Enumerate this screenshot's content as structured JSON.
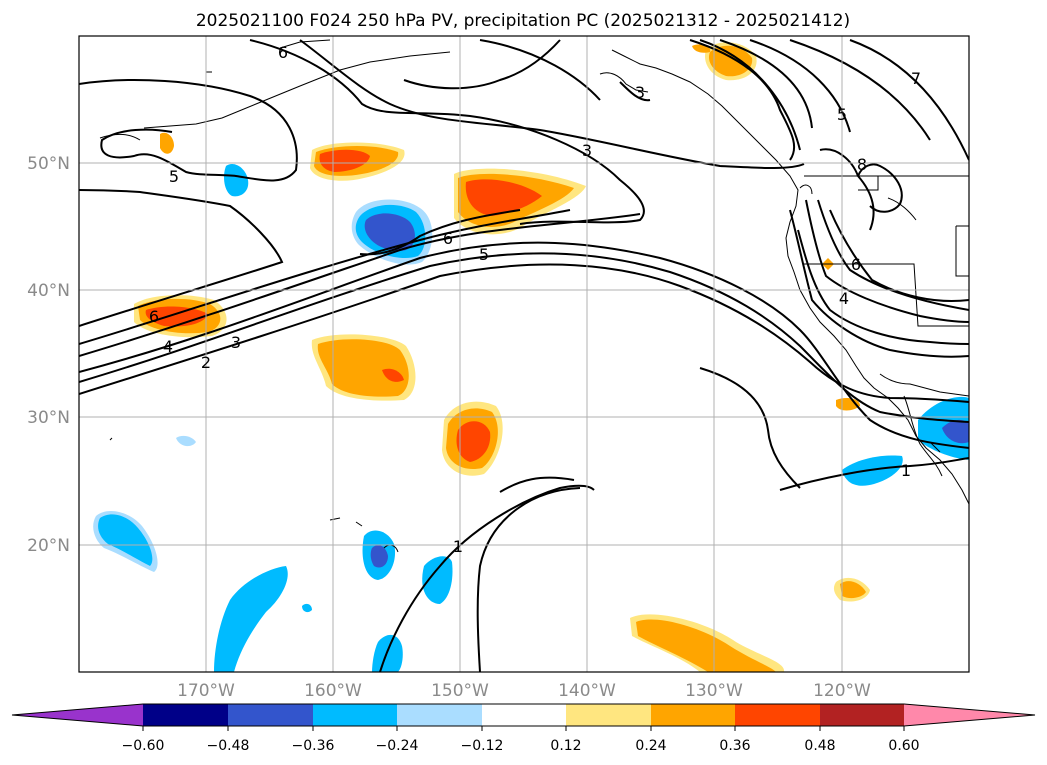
{
  "title": "2025021100 F024 250 hPa PV, precipitation PC (2025021312 - 2025021412)",
  "map": {
    "lon_ticks": [
      "170°W",
      "160°W",
      "150°W",
      "140°W",
      "130°W",
      "120°W"
    ],
    "lat_ticks": [
      "50°N",
      "40°N",
      "30°N",
      "20°N"
    ],
    "grid": true,
    "pv_contour_labels": [
      "6",
      "5",
      "6",
      "3",
      "6",
      "5",
      "4",
      "3",
      "2",
      "1",
      "7",
      "5",
      "8",
      "6",
      "4",
      "1",
      "3"
    ]
  },
  "colorbar": {
    "ticks": [
      "−0.60",
      "−0.48",
      "−0.36",
      "−0.24",
      "−0.12",
      "0.12",
      "0.24",
      "0.36",
      "0.48",
      "0.60"
    ],
    "colors": [
      "#9933cc",
      "#000088",
      "#3355cc",
      "#00bbff",
      "#aaddff",
      "#ffffff",
      "#ffe680",
      "#ffa500",
      "#ff4500",
      "#b22222",
      "#ff88aa"
    ]
  }
}
